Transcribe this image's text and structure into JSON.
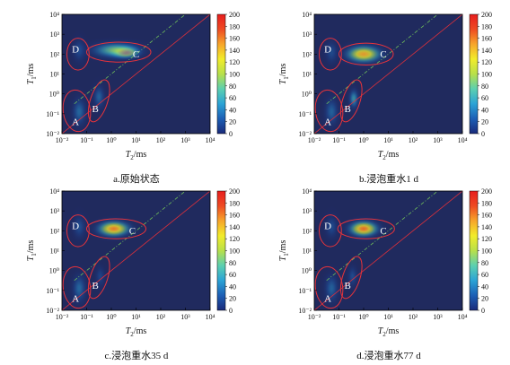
{
  "chart_data": [
    {
      "type": "heatmap",
      "caption": "a.原始状态",
      "xlabel": "T2/ms",
      "ylabel": "T1/ms",
      "x_ticks": [
        "10⁻²",
        "10⁻¹",
        "10⁰",
        "10¹",
        "10²",
        "10³",
        "10⁴"
      ],
      "y_ticks": [
        "10⁻²",
        "10⁻¹",
        "10⁰",
        "10¹",
        "10²",
        "10³",
        "10⁴"
      ],
      "xlim": [
        -2,
        4
      ],
      "ylim": [
        -2,
        4
      ],
      "log_scale": true,
      "colorbar": {
        "min": 0,
        "max": 200,
        "ticks": [
          0,
          20,
          40,
          60,
          80,
          100,
          120,
          140,
          160,
          180,
          200
        ]
      },
      "peaks": [
        {
          "log_t2": 0.55,
          "log_t1": 2.1,
          "amplitude": 200,
          "sx": 0.42,
          "sy": 0.22
        },
        {
          "log_t2": 0.2,
          "log_t1": 2.2,
          "amplitude": 95,
          "sx": 0.75,
          "sy": 0.3
        },
        {
          "log_t2": -1.3,
          "log_t1": -0.9,
          "amplitude": 45,
          "sx": 0.22,
          "sy": 0.55
        },
        {
          "log_t2": -1.3,
          "log_t1": 2.2,
          "amplitude": 30,
          "sx": 0.2,
          "sy": 0.45
        },
        {
          "log_t2": -0.5,
          "log_t1": -0.15,
          "amplitude": 42,
          "sx": 0.18,
          "sy": 0.45
        }
      ],
      "regions": [
        {
          "label": "A",
          "cx": -1.4,
          "cy": -0.85,
          "rx": 0.55,
          "ry": 1.05,
          "rot": -8,
          "label_at": [
            -1.45,
            -1.45
          ]
        },
        {
          "label": "B",
          "cx": -0.5,
          "cy": -0.35,
          "rx": 0.35,
          "ry": 1.1,
          "rot": 18,
          "label_at": [
            -0.65,
            -0.8
          ]
        },
        {
          "label": "C",
          "cx": 0.3,
          "cy": 2.1,
          "rx": 1.3,
          "ry": 0.5,
          "rot": 0,
          "label_at": [
            1.0,
            1.95
          ]
        },
        {
          "label": "D",
          "cx": -1.35,
          "cy": 2.0,
          "rx": 0.45,
          "ry": 0.8,
          "rot": 0,
          "label_at": [
            -1.45,
            2.2
          ]
        }
      ]
    },
    {
      "type": "heatmap",
      "caption": "b.浸泡重水1 d",
      "xlabel": "T2/ms",
      "ylabel": "T1/ms",
      "x_ticks": [
        "10⁻²",
        "10⁻¹",
        "10⁰",
        "10¹",
        "10²",
        "10³",
        "10⁴"
      ],
      "y_ticks": [
        "10⁻²",
        "10⁻¹",
        "10⁰",
        "10¹",
        "10²",
        "10³",
        "10⁴"
      ],
      "xlim": [
        -2,
        4
      ],
      "ylim": [
        -2,
        4
      ],
      "log_scale": true,
      "colorbar": {
        "min": 0,
        "max": 200,
        "ticks": [
          0,
          20,
          40,
          60,
          80,
          100,
          120,
          140,
          160,
          180,
          200
        ]
      },
      "peaks": [
        {
          "log_t2": 0.0,
          "log_t1": 2.0,
          "amplitude": 150,
          "sx": 0.55,
          "sy": 0.33
        },
        {
          "log_t2": -1.3,
          "log_t1": -0.9,
          "amplitude": 42,
          "sx": 0.22,
          "sy": 0.55
        },
        {
          "log_t2": -1.3,
          "log_t1": 2.1,
          "amplitude": 30,
          "sx": 0.2,
          "sy": 0.45
        },
        {
          "log_t2": -0.4,
          "log_t1": -0.25,
          "amplitude": 65,
          "sx": 0.15,
          "sy": 0.38
        }
      ],
      "regions": [
        {
          "label": "A",
          "cx": -1.4,
          "cy": -0.85,
          "rx": 0.55,
          "ry": 1.05,
          "rot": -8,
          "label_at": [
            -1.45,
            -1.45
          ]
        },
        {
          "label": "B",
          "cx": -0.5,
          "cy": -0.35,
          "rx": 0.35,
          "ry": 1.1,
          "rot": 18,
          "label_at": [
            -0.65,
            -0.8
          ]
        },
        {
          "label": "C",
          "cx": 0.1,
          "cy": 2.0,
          "rx": 1.1,
          "ry": 0.55,
          "rot": 0,
          "label_at": [
            0.8,
            1.95
          ]
        },
        {
          "label": "D",
          "cx": -1.35,
          "cy": 2.0,
          "rx": 0.45,
          "ry": 0.8,
          "rot": 0,
          "label_at": [
            -1.45,
            2.2
          ]
        }
      ]
    },
    {
      "type": "heatmap",
      "caption": "c.浸泡重水35 d",
      "xlabel": "T2/ms",
      "ylabel": "T1/ms",
      "x_ticks": [
        "10⁻²",
        "10⁻¹",
        "10⁰",
        "10¹",
        "10²",
        "10³",
        "10⁴"
      ],
      "y_ticks": [
        "10⁻²",
        "10⁻¹",
        "10⁰",
        "10¹",
        "10²",
        "10³",
        "10⁴"
      ],
      "xlim": [
        -2,
        4
      ],
      "ylim": [
        -2,
        4
      ],
      "log_scale": true,
      "colorbar": {
        "min": 0,
        "max": 200,
        "ticks": [
          0,
          20,
          40,
          60,
          80,
          100,
          120,
          140,
          160,
          180,
          200
        ]
      },
      "peaks": [
        {
          "log_t2": 0.1,
          "log_t1": 2.1,
          "amplitude": 160,
          "sx": 0.5,
          "sy": 0.3
        },
        {
          "log_t2": -1.3,
          "log_t1": -0.9,
          "amplitude": 45,
          "sx": 0.22,
          "sy": 0.55
        },
        {
          "log_t2": -1.3,
          "log_t1": 2.2,
          "amplitude": 32,
          "sx": 0.2,
          "sy": 0.45
        },
        {
          "log_t2": -0.45,
          "log_t1": -0.3,
          "amplitude": 25,
          "sx": 0.15,
          "sy": 0.4
        }
      ],
      "regions": [
        {
          "label": "A",
          "cx": -1.4,
          "cy": -0.85,
          "rx": 0.55,
          "ry": 1.05,
          "rot": -8,
          "label_at": [
            -1.45,
            -1.45
          ]
        },
        {
          "label": "B",
          "cx": -0.5,
          "cy": -0.35,
          "rx": 0.35,
          "ry": 1.1,
          "rot": 18,
          "label_at": [
            -0.65,
            -0.8
          ]
        },
        {
          "label": "C",
          "cx": 0.2,
          "cy": 2.1,
          "rx": 1.2,
          "ry": 0.5,
          "rot": 0,
          "label_at": [
            0.85,
            1.95
          ]
        },
        {
          "label": "D",
          "cx": -1.35,
          "cy": 2.0,
          "rx": 0.45,
          "ry": 0.8,
          "rot": 0,
          "label_at": [
            -1.45,
            2.2
          ]
        }
      ]
    },
    {
      "type": "heatmap",
      "caption": "d.浸泡重水77 d",
      "xlabel": "T2/ms",
      "ylabel": "T1/ms",
      "x_ticks": [
        "10⁻²",
        "10⁻¹",
        "10⁰",
        "10¹",
        "10²",
        "10³",
        "10⁴"
      ],
      "y_ticks": [
        "10⁻²",
        "10⁻¹",
        "10⁰",
        "10¹",
        "10²",
        "10³",
        "10⁴"
      ],
      "xlim": [
        -2,
        4
      ],
      "ylim": [
        -2,
        4
      ],
      "log_scale": true,
      "colorbar": {
        "min": 0,
        "max": 200,
        "ticks": [
          0,
          20,
          40,
          60,
          80,
          100,
          120,
          140,
          160,
          180,
          200
        ]
      },
      "peaks": [
        {
          "log_t2": 0.0,
          "log_t1": 2.1,
          "amplitude": 165,
          "sx": 0.45,
          "sy": 0.3
        },
        {
          "log_t2": -1.3,
          "log_t1": -0.9,
          "amplitude": 42,
          "sx": 0.22,
          "sy": 0.55
        },
        {
          "log_t2": -1.3,
          "log_t1": 2.2,
          "amplitude": 30,
          "sx": 0.2,
          "sy": 0.45
        },
        {
          "log_t2": -0.45,
          "log_t1": -0.3,
          "amplitude": 30,
          "sx": 0.15,
          "sy": 0.4
        }
      ],
      "regions": [
        {
          "label": "A",
          "cx": -1.4,
          "cy": -0.85,
          "rx": 0.55,
          "ry": 1.05,
          "rot": -8,
          "label_at": [
            -1.45,
            -1.45
          ]
        },
        {
          "label": "B",
          "cx": -0.5,
          "cy": -0.35,
          "rx": 0.35,
          "ry": 1.1,
          "rot": 18,
          "label_at": [
            -0.65,
            -0.8
          ]
        },
        {
          "label": "C",
          "cx": 0.1,
          "cy": 2.1,
          "rx": 1.15,
          "ry": 0.5,
          "rot": 0,
          "label_at": [
            0.8,
            1.95
          ]
        },
        {
          "label": "D",
          "cx": -1.35,
          "cy": 2.0,
          "rx": 0.45,
          "ry": 0.8,
          "rot": 0,
          "label_at": [
            -1.45,
            2.2
          ]
        }
      ]
    }
  ],
  "colors": {
    "background": "#202a5e",
    "region_outline": "#e8333a",
    "diagonal_solid": "#e0303a",
    "diagonal_dashed": "#6fbf5a",
    "colormap": [
      "#1a2a7a",
      "#1d5fb5",
      "#2ba3d6",
      "#5cd0b0",
      "#b8e04a",
      "#f2ec2a",
      "#f7a52a",
      "#ee4a22",
      "#e81e1e"
    ]
  }
}
